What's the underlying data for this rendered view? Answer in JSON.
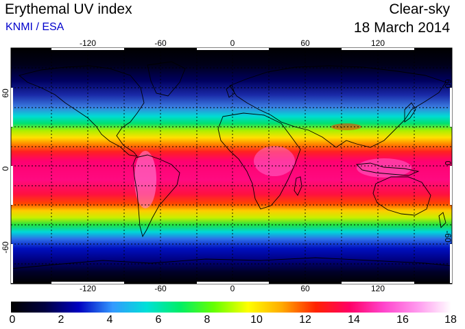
{
  "header": {
    "title": "Erythemal UV index",
    "source": "KNMI / ESA",
    "mode": "Clear-sky",
    "date": "18 March 2014"
  },
  "map": {
    "lon_ticks": [
      "-120",
      "-60",
      "0",
      "60",
      "120"
    ],
    "lat_ticks": [
      "60",
      "0",
      "-60"
    ],
    "lon_range": [
      -180,
      180
    ],
    "lat_range": [
      -90,
      90
    ],
    "gridlines": true,
    "colors": {
      "background": "#000000",
      "coastline": "#000000",
      "grid": "#000000"
    }
  },
  "colorbar": {
    "labels": [
      "0",
      "2",
      "4",
      "6",
      "8",
      "10",
      "12",
      "14",
      "16",
      "18"
    ],
    "range": [
      0,
      18
    ],
    "colors": [
      "#000000",
      "#000040",
      "#0000c0",
      "#3399ff",
      "#00e0d8",
      "#00ee66",
      "#66ff00",
      "#ffff00",
      "#ffaa00",
      "#ff2200",
      "#ff0066",
      "#ff44cc",
      "#ff99ee",
      "#ffffff"
    ]
  }
}
